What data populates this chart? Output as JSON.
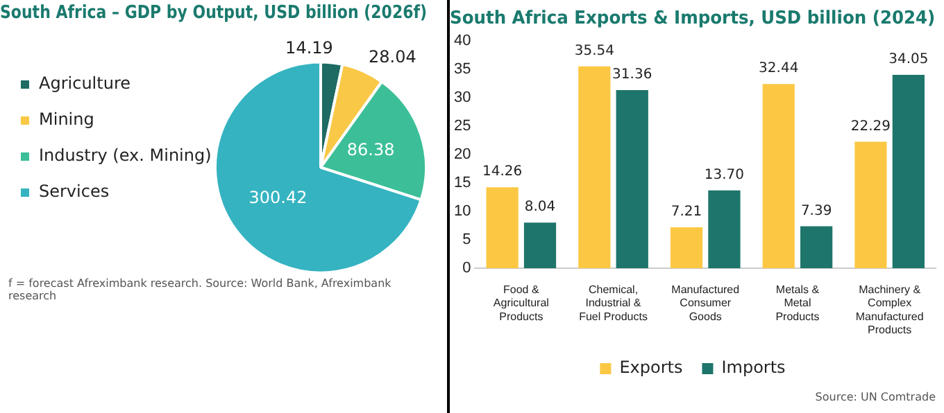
{
  "chart_data": [
    {
      "type": "pie",
      "title": "South Africa – GDP by Output, USD billion (2026f)",
      "categories": [
        "Agriculture",
        "Mining",
        "Industry (ex. Mining)",
        "Services"
      ],
      "values": [
        14.19,
        28.04,
        86.38,
        300.42
      ],
      "colors": [
        "#1d6b63",
        "#f9c846",
        "#3cbf98",
        "#35b3c1"
      ],
      "data_labels": true,
      "legend": "left",
      "annotations": [
        "f = forecast Afreximbank research. Source: World Bank, Afreximbank research"
      ]
    },
    {
      "type": "bar",
      "title": "South Africa Exports & Imports, USD billion (2024)",
      "categories": [
        "Food & Agricultural Products",
        "Chemical, Industrial & Fuel Products",
        "Manufactured Consumer Goods",
        "Metals & Metal Products",
        "Machinery & Complex Manufactured Products"
      ],
      "series": [
        {
          "name": "Exports",
          "color": "#fcc844",
          "values": [
            14.26,
            35.54,
            7.21,
            32.44,
            22.29
          ],
          "value_labels": [
            "14.26",
            "35.54",
            "7.21",
            "32.44",
            "22.29"
          ]
        },
        {
          "name": "Imports",
          "color": "#1e756b",
          "values": [
            8.04,
            31.36,
            13.7,
            7.39,
            34.05
          ],
          "value_labels": [
            "8.04",
            "31.36",
            "13.70",
            "7.39",
            "34.05"
          ]
        }
      ],
      "ylim": [
        0,
        40
      ],
      "yticks": [
        0,
        5,
        10,
        15,
        20,
        25,
        30,
        35,
        40
      ],
      "grid": false,
      "legend": "bottom",
      "annotations": [
        "Source: UN Comtrade"
      ]
    }
  ]
}
